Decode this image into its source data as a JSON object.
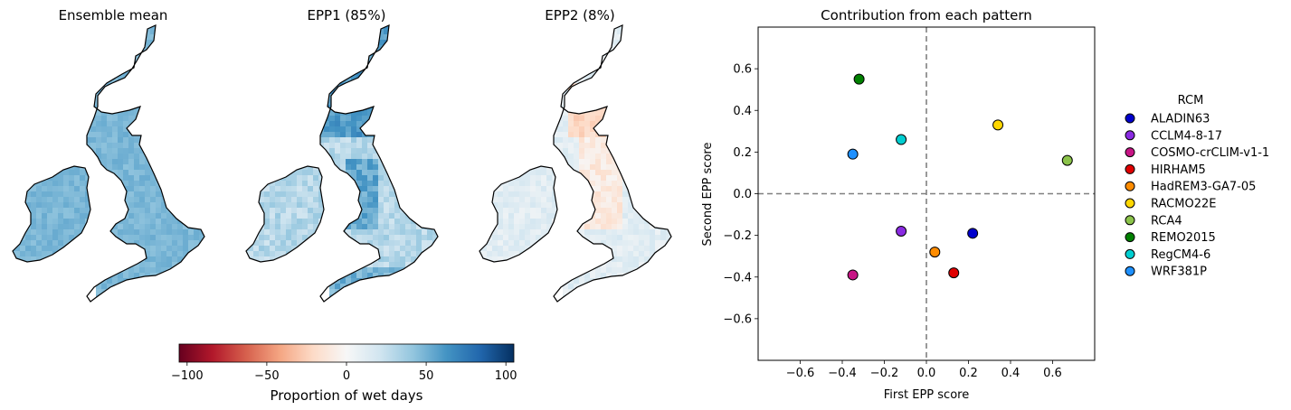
{
  "maps": [
    {
      "title": "Ensemble mean",
      "field": "mean"
    },
    {
      "title": "EPP1 (85%)",
      "field": "epp1"
    },
    {
      "title": "EPP2 (8%)",
      "field": "epp2"
    }
  ],
  "colorbar": {
    "label": "Proportion of wet days",
    "ticks": [
      "−100",
      "−50",
      "0",
      "50",
      "100"
    ],
    "tick_values": [
      -100,
      -50,
      0,
      50,
      100
    ],
    "range": [
      -105,
      105
    ],
    "colormap": "RdBu",
    "colors": [
      "#67001f",
      "#b2182b",
      "#d6604d",
      "#f4a582",
      "#fddbc7",
      "#f7f7f7",
      "#d1e5f0",
      "#92c5de",
      "#4393c3",
      "#2166ac",
      "#053061"
    ]
  },
  "chart_data": {
    "type": "scatter",
    "title": "Contribution from each pattern",
    "xlabel": "First EPP score",
    "ylabel": "Second EPP score",
    "xlim": [
      -0.8,
      0.8
    ],
    "ylim": [
      -0.8,
      0.8
    ],
    "xticks": [
      "−0.6",
      "−0.4",
      "−0.2",
      "0.0",
      "0.2",
      "0.4",
      "0.6"
    ],
    "xtick_values": [
      -0.6,
      -0.4,
      -0.2,
      0.0,
      0.2,
      0.4,
      0.6
    ],
    "yticks": [
      "−0.6",
      "−0.4",
      "−0.2",
      "0.0",
      "0.2",
      "0.4",
      "0.6"
    ],
    "ytick_values": [
      -0.6,
      -0.4,
      -0.2,
      0.0,
      0.2,
      0.4,
      0.6
    ],
    "reference_lines": {
      "x": 0,
      "y": 0,
      "style": "dashed",
      "color": "#808080"
    },
    "legend_title": "RCM",
    "legend_placement": "right, outside plot",
    "series": [
      {
        "name": "ALADIN63",
        "color": "#0000cc",
        "x": 0.22,
        "y": -0.19
      },
      {
        "name": "CCLM4-8-17",
        "color": "#8a2be2",
        "x": -0.12,
        "y": -0.18
      },
      {
        "name": "COSMO-crCLIM-v1-1",
        "color": "#c71585",
        "x": -0.35,
        "y": -0.39
      },
      {
        "name": "HIRHAM5",
        "color": "#e00000",
        "x": 0.13,
        "y": -0.38
      },
      {
        "name": "HadREM3-GA7-05",
        "color": "#ff8c00",
        "x": 0.04,
        "y": -0.28
      },
      {
        "name": "RACMO22E",
        "color": "#ffd700",
        "x": 0.34,
        "y": 0.33
      },
      {
        "name": "RCA4",
        "color": "#8bc34a",
        "x": 0.67,
        "y": 0.16
      },
      {
        "name": "REMO2015",
        "color": "#008000",
        "x": -0.32,
        "y": 0.55
      },
      {
        "name": "RegCM4-6",
        "color": "#00ced1",
        "x": -0.12,
        "y": 0.26
      },
      {
        "name": "WRF381P",
        "color": "#1e90ff",
        "x": -0.35,
        "y": 0.19
      }
    ]
  }
}
